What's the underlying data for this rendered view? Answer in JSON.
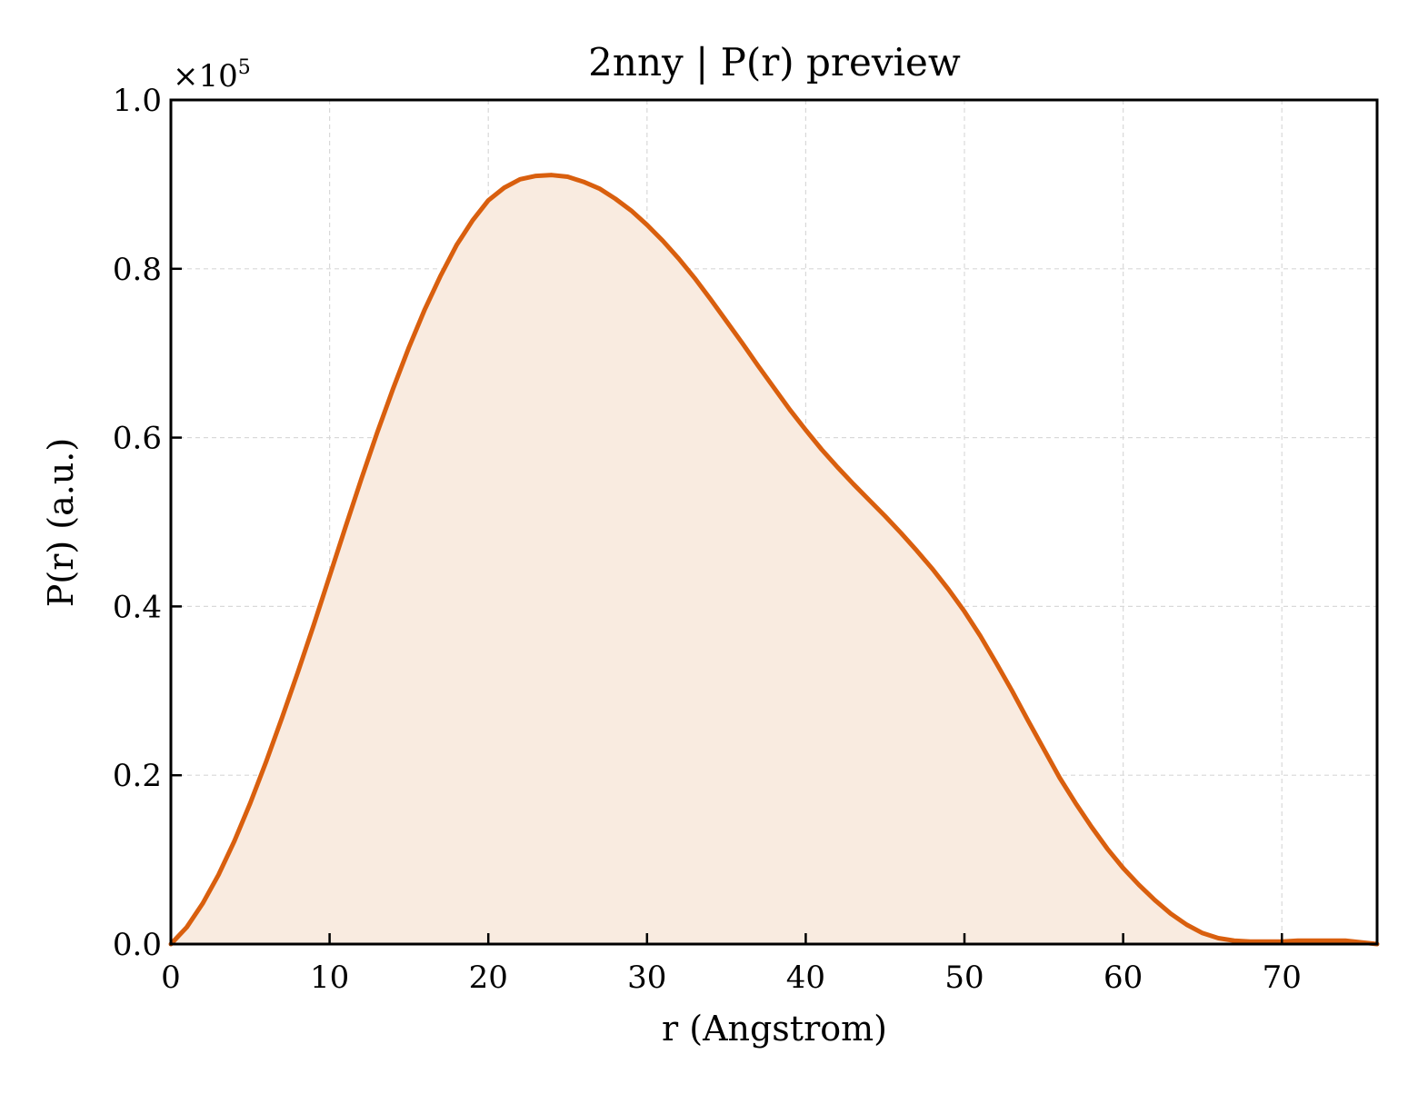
{
  "chart_data": {
    "type": "area",
    "title": "2nny | P(r) preview",
    "xlabel": "r (Angstrom)",
    "ylabel": "P(r) (a.u.)",
    "y_multiplier": {
      "base": "×10",
      "exponent": "5"
    },
    "xlim": [
      0,
      76
    ],
    "ylim": [
      0,
      1.0
    ],
    "x_ticks": [
      0,
      10,
      20,
      30,
      40,
      50,
      60,
      70
    ],
    "x_tick_labels": [
      "0",
      "10",
      "20",
      "30",
      "40",
      "50",
      "60",
      "70"
    ],
    "y_ticks": [
      0.0,
      0.2,
      0.4,
      0.6,
      0.8,
      1.0
    ],
    "y_tick_labels": [
      "0.0",
      "0.2",
      "0.4",
      "0.6",
      "0.8",
      "1.0"
    ],
    "grid": true,
    "legend": false,
    "colors": {
      "line": "#d95f0e",
      "fill": "#f9ebe0",
      "grid": "#d9d9d9",
      "axes": "#000000"
    },
    "series": [
      {
        "x": [
          0,
          1,
          2,
          3,
          4,
          5,
          6,
          7,
          8,
          9,
          10,
          11,
          12,
          13,
          14,
          15,
          16,
          17,
          18,
          19,
          20,
          21,
          22,
          23,
          24,
          25,
          26,
          27,
          28,
          29,
          30,
          31,
          32,
          33,
          34,
          35,
          36,
          37,
          38,
          39,
          40,
          41,
          42,
          43,
          44,
          45,
          46,
          47,
          48,
          49,
          50,
          51,
          52,
          53,
          54,
          55,
          56,
          57,
          58,
          59,
          60,
          61,
          62,
          63,
          64,
          65,
          66,
          67,
          68,
          69,
          70,
          71,
          72,
          73,
          74,
          75,
          76
        ],
        "y": [
          0.0,
          0.02,
          0.048,
          0.082,
          0.122,
          0.167,
          0.216,
          0.268,
          0.322,
          0.378,
          0.436,
          0.494,
          0.551,
          0.606,
          0.658,
          0.707,
          0.752,
          0.792,
          0.828,
          0.857,
          0.881,
          0.896,
          0.906,
          0.91,
          0.911,
          0.909,
          0.903,
          0.895,
          0.883,
          0.869,
          0.852,
          0.833,
          0.812,
          0.789,
          0.764,
          0.738,
          0.712,
          0.685,
          0.659,
          0.633,
          0.609,
          0.586,
          0.565,
          0.545,
          0.526,
          0.507,
          0.487,
          0.466,
          0.444,
          0.42,
          0.394,
          0.365,
          0.333,
          0.3,
          0.265,
          0.231,
          0.197,
          0.167,
          0.139,
          0.113,
          0.09,
          0.07,
          0.052,
          0.036,
          0.023,
          0.013,
          0.007,
          0.004,
          0.003,
          0.003,
          0.003,
          0.004,
          0.004,
          0.004,
          0.004,
          0.002,
          0.0
        ]
      }
    ]
  }
}
